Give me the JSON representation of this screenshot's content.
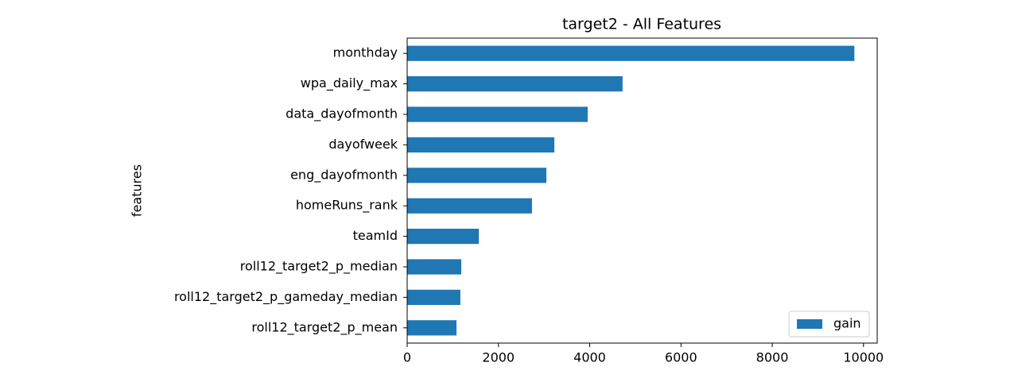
{
  "chart_data": {
    "type": "barh",
    "title": "target2 - All Features",
    "ylabel": "features",
    "categories": [
      "monthday",
      "wpa_daily_max",
      "data_dayofmonth",
      "dayofweek",
      "eng_dayofmonth",
      "homeRuns_rank",
      "teamId",
      "roll12_target2_p_median",
      "roll12_target2_p_gameday_median",
      "roll12_target2_p_mean"
    ],
    "series": [
      {
        "name": "gain",
        "color": "#1f77b4",
        "values": [
          9800,
          4720,
          3955,
          3225,
          3050,
          2735,
          1570,
          1185,
          1165,
          1080
        ]
      }
    ],
    "xlim": [
      0,
      10300
    ],
    "xticks": [
      0,
      2000,
      4000,
      6000,
      8000,
      10000
    ],
    "legend": "lower right"
  }
}
